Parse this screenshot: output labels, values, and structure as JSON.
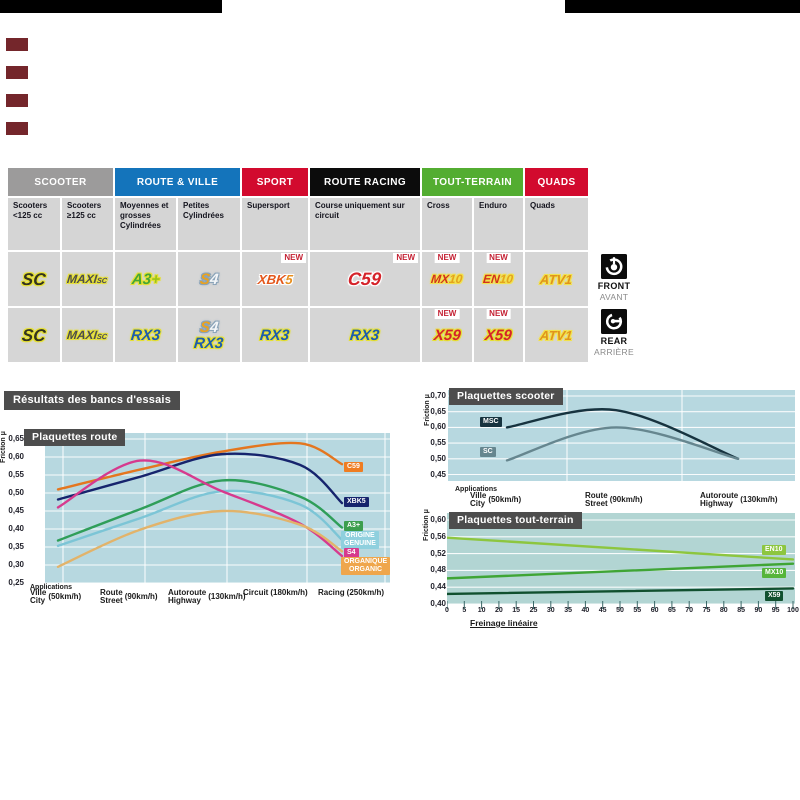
{
  "page": {
    "background": "#ffffff",
    "top_bars": {
      "color": "#000000"
    },
    "side_markers": {
      "color": "#74262b",
      "count": 4
    }
  },
  "catalog": {
    "categories": [
      {
        "label": "SCOOTER",
        "color": "#9c9b9b",
        "span": 2
      },
      {
        "label": "ROUTE & VILLE",
        "color": "#1474bb",
        "span": 2
      },
      {
        "label": "SPORT",
        "color": "#d20a2e",
        "span": 1
      },
      {
        "label": "ROUTE RACING",
        "color": "#0c0c0c",
        "span": 1
      },
      {
        "label": "TOUT-TERRAIN",
        "color": "#53ad31",
        "span": 2
      },
      {
        "label": "QUADS",
        "color": "#d20a2e",
        "span": 1
      }
    ],
    "subheaders": [
      "Scooters <125 cc",
      "Scooters ≥125 cc",
      "Moyennes et grosses Cylindrées",
      "Petites Cylindrées",
      "Supersport",
      "Course uniquement sur circuit",
      "Cross",
      "Enduro",
      "Quads"
    ],
    "new_label": "NEW",
    "rows": [
      {
        "side": "front",
        "cells": [
          {
            "products": [
              "sc"
            ]
          },
          {
            "products": [
              "maxisc"
            ]
          },
          {
            "products": [
              "a3"
            ]
          },
          {
            "products": [
              "s4"
            ]
          },
          {
            "products": [
              "xbk5"
            ],
            "new": "right"
          },
          {
            "products": [
              "c59"
            ],
            "new": "right"
          },
          {
            "products": [
              "mx10"
            ],
            "new": "center"
          },
          {
            "products": [
              "en10"
            ],
            "new": "center"
          },
          {
            "products": [
              "atv1"
            ]
          }
        ]
      },
      {
        "side": "rear",
        "cells": [
          {
            "products": [
              "sc"
            ]
          },
          {
            "products": [
              "maxisc"
            ]
          },
          {
            "products": [
              "rx3"
            ]
          },
          {
            "products": [
              "s4",
              "rx3"
            ]
          },
          {
            "products": [
              "rx3"
            ]
          },
          {
            "products": [
              "rx3"
            ]
          },
          {
            "products": [
              "x59"
            ],
            "new": "center"
          },
          {
            "products": [
              "x59"
            ],
            "new": "center"
          },
          {
            "products": [
              "atv1"
            ]
          }
        ]
      }
    ],
    "products": {
      "sc": {
        "size": 17,
        "glow": "#e6e032",
        "parts": [
          {
            "t": "SC",
            "c": "#33331f"
          }
        ]
      },
      "maxisc": {
        "size": 12,
        "glow": "#e6e032",
        "parts": [
          {
            "t": "MAXI",
            "c": "#4c4c4c"
          },
          {
            "t": "SC",
            "c": "#4c4c4c",
            "sub": true
          }
        ]
      },
      "a3": {
        "size": 15,
        "glow": "#e6e032",
        "parts": [
          {
            "t": "A3",
            "c": "#44a636"
          },
          {
            "t": "+",
            "c": "#9cc41a"
          }
        ]
      },
      "s4": {
        "size": 15,
        "glow": "#8aa3b8",
        "parts": [
          {
            "t": "S",
            "c": "#eaa21e"
          },
          {
            "t": "4",
            "c": "#f4f6f8"
          }
        ]
      },
      "xbk5": {
        "size": 13,
        "glow": "#ffffff",
        "parts": [
          {
            "t": "XBK",
            "c": "#e4571c"
          },
          {
            "t": "5",
            "c": "#e88f1e"
          }
        ]
      },
      "c59": {
        "size": 18,
        "glow": "#ffffff",
        "parts": [
          {
            "t": "C59",
            "c": "#d5232a"
          }
        ]
      },
      "mx10": {
        "size": 12,
        "glow": "#f2e24a",
        "parts": [
          {
            "t": "MX",
            "c": "#d2311c"
          },
          {
            "t": "10",
            "c": "#e4a41e"
          }
        ]
      },
      "en10": {
        "size": 12,
        "glow": "#f2e24a",
        "parts": [
          {
            "t": "EN",
            "c": "#d2311c"
          },
          {
            "t": "10",
            "c": "#e4a41e"
          }
        ]
      },
      "atv1": {
        "size": 13,
        "glow": "#f2e24a",
        "parts": [
          {
            "t": "ATV1",
            "c": "#e0941c"
          }
        ]
      },
      "rx3": {
        "size": 15,
        "glow": "#e6e032",
        "parts": [
          {
            "t": "RX3",
            "c": "#1e5cac"
          }
        ]
      },
      "x59": {
        "size": 15,
        "glow": "#e6e032",
        "parts": [
          {
            "t": "X59",
            "c": "#d5232a"
          }
        ]
      }
    }
  },
  "position_labels": {
    "front": {
      "en": "FRONT",
      "fr": "AVANT"
    },
    "rear": {
      "en": "REAR",
      "fr": "ARRIÈRE"
    }
  },
  "results_title": "Résultats des bancs d'essais",
  "chart_data": [
    {
      "id": "route",
      "type": "line",
      "title": "Plaquettes route",
      "ylabel": "Friction μ",
      "x_caption": "Applications",
      "bg": "#b7d8e0",
      "ylim": [
        0.25,
        0.65
      ],
      "yticks": [
        "0,65",
        "0,60",
        "0,55",
        "0,50",
        "0,45",
        "0,40",
        "0,35",
        "0,30",
        "0,25"
      ],
      "categories": [
        {
          "fr": "Ville",
          "en": "City",
          "speed": "(50km/h)"
        },
        {
          "fr": "Route",
          "en": "Street",
          "speed": "(90km/h)"
        },
        {
          "fr": "Autoroute",
          "en": "Highway",
          "speed": "(130km/h)"
        },
        {
          "fr": "Circuit",
          "speed": "(180km/h)"
        },
        {
          "fr": "Racing",
          "speed": "(250km/h)"
        }
      ],
      "series": [
        {
          "name": "C59",
          "color": "#e4761f",
          "label_bg": "#ef7d22",
          "values": [
            0.51,
            0.565,
            0.615,
            0.638,
            0.58
          ]
        },
        {
          "name": "XBK5",
          "color": "#16246d",
          "label_bg": "#16246d",
          "values": [
            0.482,
            0.545,
            0.608,
            0.578,
            0.472
          ]
        },
        {
          "name": "A3+",
          "color": "#2f9e59",
          "label_bg": "#3d9e4e",
          "values": [
            0.368,
            0.455,
            0.535,
            0.49,
            0.404
          ]
        },
        {
          "name": "ORIGINE\nGENUINE",
          "color": "#7cc5d6",
          "label_bg": "#8fd0de",
          "values": [
            0.353,
            0.43,
            0.505,
            0.468,
            0.37
          ]
        },
        {
          "name": "S4",
          "color": "#d63a8e",
          "label_bg": "#d63a8e",
          "values": [
            0.46,
            0.59,
            0.505,
            0.415,
            0.325
          ]
        },
        {
          "name": "ORGANIQUE\nORGANIC",
          "color": "#e2b36a",
          "label_bg": "#efa64c",
          "values": [
            0.295,
            0.398,
            0.45,
            0.412,
            0.338
          ]
        }
      ]
    },
    {
      "id": "scooter",
      "type": "line",
      "title": "Plaquettes scooter",
      "ylabel": "Friction μ",
      "x_caption": "Applications",
      "bg": "#b7d8e0",
      "ylim": [
        0.45,
        0.7
      ],
      "yticks": [
        "0,70",
        "0,65",
        "0,60",
        "0,55",
        "0,50",
        "0,45"
      ],
      "categories": [
        {
          "fr": "Ville",
          "en": "City",
          "speed": "(50km/h)"
        },
        {
          "fr": "Route",
          "en": "Street",
          "speed": "(90km/h)"
        },
        {
          "fr": "Autoroute",
          "en": "Highway",
          "speed": "(130km/h)"
        }
      ],
      "series": [
        {
          "name": "MSC",
          "color": "#17333f",
          "label_bg": "#17333f",
          "values": [
            0.6,
            0.655,
            0.5
          ]
        },
        {
          "name": "SC",
          "color": "#66868f",
          "label_bg": "#66868f",
          "values": [
            0.495,
            0.6,
            0.5
          ]
        }
      ]
    },
    {
      "id": "terrain",
      "type": "line",
      "title": "Plaquettes tout-terrain",
      "ylabel": "Friction μ",
      "x_caption": "Freinage linéaire",
      "bg": "#b2d5d3",
      "ylim": [
        0.4,
        0.6
      ],
      "yticks": [
        "0,60",
        "0,56",
        "0,52",
        "0,48",
        "0,44",
        "0,40"
      ],
      "xticks": [
        "0",
        "5",
        "10",
        "20",
        "15",
        "25",
        "30",
        "35",
        "40",
        "45",
        "50",
        "55",
        "60",
        "65",
        "70",
        "75",
        "80",
        "85",
        "90",
        "95",
        "100"
      ],
      "xlim": [
        0,
        100
      ],
      "series": [
        {
          "name": "EN10",
          "color": "#8dc63f",
          "label_bg": "#8dc63f",
          "points": [
            [
              0,
              0.558
            ],
            [
              100,
              0.506
            ]
          ]
        },
        {
          "name": "MX10",
          "color": "#3fa535",
          "label_bg": "#56b53a",
          "points": [
            [
              0,
              0.461
            ],
            [
              100,
              0.496
            ]
          ]
        },
        {
          "name": "X59",
          "color": "#11502f",
          "label_bg": "#11502f",
          "points": [
            [
              0,
              0.424
            ],
            [
              100,
              0.437
            ]
          ]
        }
      ]
    }
  ]
}
